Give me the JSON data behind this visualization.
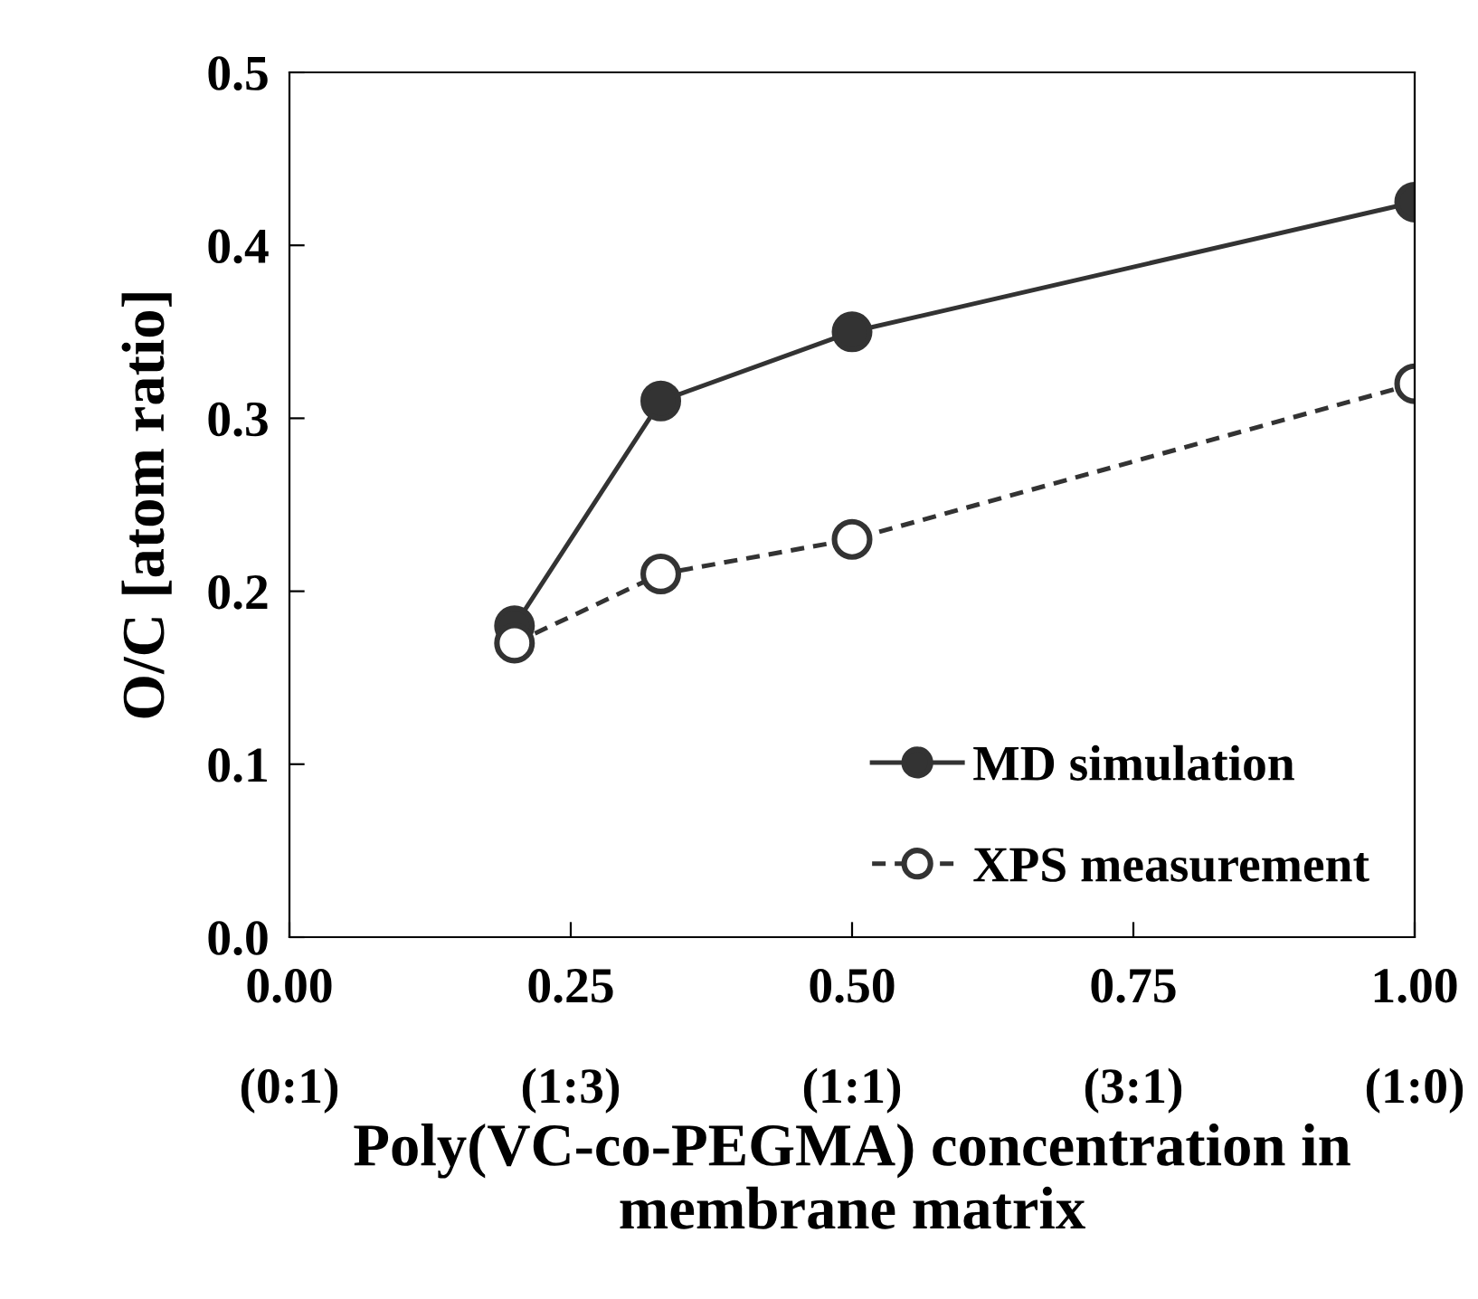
{
  "chart_data": {
    "type": "line",
    "xlabel": "Poly(VC-co-PEGMA) concentration in membrane matrix",
    "ylabel": "O/C [atom ratio]",
    "series": [
      {
        "name": "MD simulation",
        "color": "#333333",
        "x": [
          0.2,
          0.33,
          0.5,
          1.0
        ],
        "values": [
          0.18,
          0.31,
          0.35,
          0.425
        ],
        "line_style": "solid",
        "marker": "circle"
      },
      {
        "name": "XPS measurement",
        "color": "#333333",
        "x": [
          0.2,
          0.33,
          0.5,
          1.0
        ],
        "values": [
          0.17,
          0.21,
          0.23,
          0.32
        ],
        "line_style": "dashed",
        "marker": "circle"
      }
    ],
    "xlim": [
      0,
      1
    ],
    "xticks": [
      {
        "value": 0,
        "label": "0.00"
      },
      0.25,
      {
        "value": 0.5,
        "label": "0.50"
      },
      0.75,
      {
        "value": 1,
        "label": "1.00"
      }
    ],
    "annotations": [
      "(0:1)",
      "(1:3)",
      "(1:1)",
      "(3:1)",
      "(1:0)"
    ],
    "ylim": [
      0,
      0.5
    ],
    "yticks": [
      {
        "value": 0,
        "label": "0.0"
      },
      0.1,
      0.2,
      0.3,
      0.4,
      0.5
    ],
    "grid": false,
    "legend": "bottom right"
  }
}
